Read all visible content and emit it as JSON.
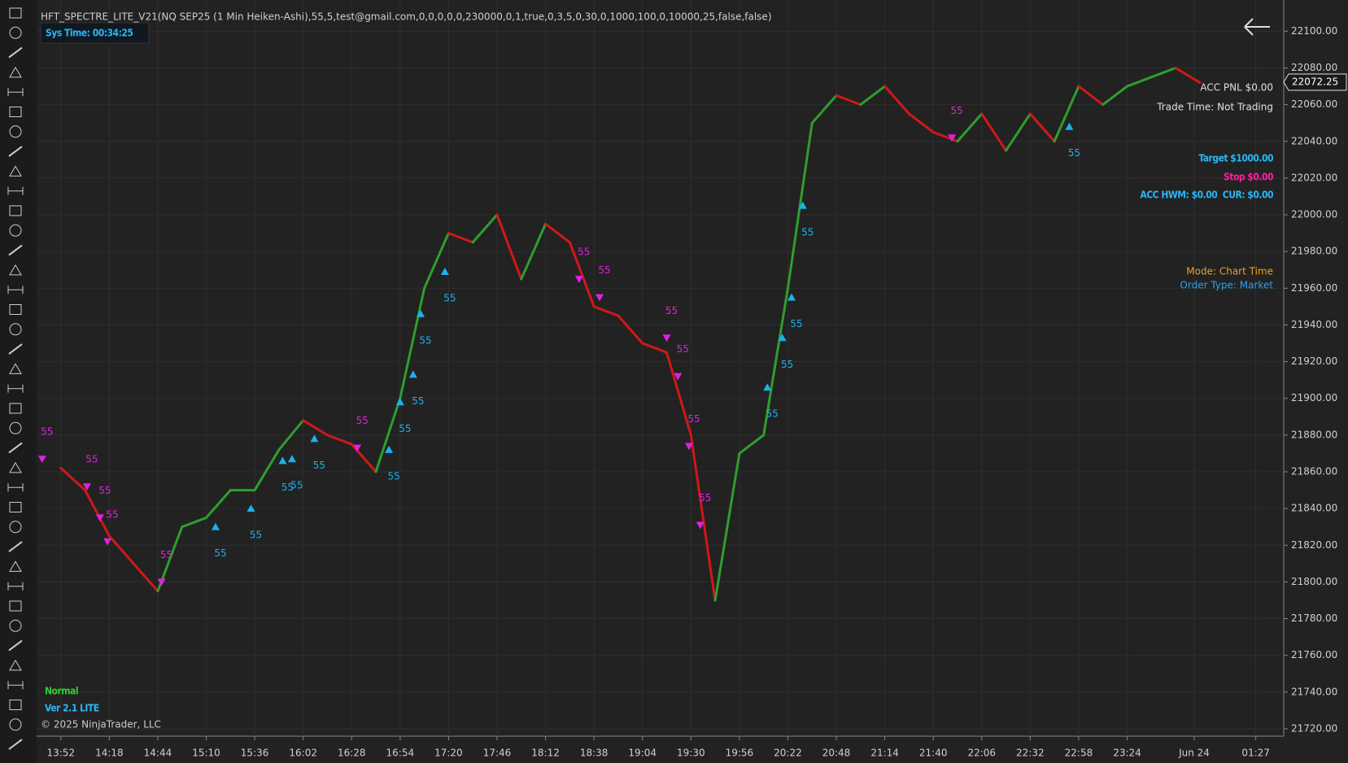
{
  "chart_data": {
    "type": "candlestick",
    "title": "HFT_SPECTRE_LITE_V21(NQ SEP25 (1 Min Heiken-Ashi),55,5,test@gmail.com,0,0,0,0,0,230000,0,1,true,0,3,5,0,30,0,1000,100,0,10000,25,false,false)",
    "sys_time": "Sys Time: 00:34:25",
    "acc_pnl": "ACC PNL $0.00",
    "trade_time": "Trade Time: Not Trading",
    "target": "Target $1000.00",
    "stop": "Stop $0.00",
    "acc_hwm": "ACC HWM: $0.00  CUR: $0.00",
    "mode": "Mode: Chart Time",
    "order_type": "Order Type: Market",
    "status": "Normal",
    "version": "Ver 2.1 LITE",
    "copyright": "© 2025 NinjaTrader, LLC",
    "last_price": 22072.25,
    "up_color": "#2e9e2e",
    "down_color": "#d01818",
    "grid": true,
    "xlim": [
      -13,
      656
    ],
    "ylim": [
      21716,
      22117
    ],
    "xticks": [
      {
        "value": 0,
        "label": "13:52"
      },
      {
        "value": 26,
        "label": "14:18"
      },
      {
        "value": 52,
        "label": "14:44"
      },
      {
        "value": 78,
        "label": "15:10"
      },
      {
        "value": 104,
        "label": "15:36"
      },
      {
        "value": 130,
        "label": "16:02"
      },
      {
        "value": 156,
        "label": "16:28"
      },
      {
        "value": 182,
        "label": "16:54"
      },
      {
        "value": 208,
        "label": "17:20"
      },
      {
        "value": 234,
        "label": "17:46"
      },
      {
        "value": 260,
        "label": "18:12"
      },
      {
        "value": 286,
        "label": "18:38"
      },
      {
        "value": 312,
        "label": "19:04"
      },
      {
        "value": 338,
        "label": "19:30"
      },
      {
        "value": 364,
        "label": "19:56"
      },
      {
        "value": 390,
        "label": "20:22"
      },
      {
        "value": 416,
        "label": "20:48"
      },
      {
        "value": 442,
        "label": "21:14"
      },
      {
        "value": 468,
        "label": "21:40"
      },
      {
        "value": 494,
        "label": "22:06"
      },
      {
        "value": 520,
        "label": "22:32"
      },
      {
        "value": 546,
        "label": "22:58"
      },
      {
        "value": 572,
        "label": "23:24"
      },
      {
        "value": 608,
        "label": "Jun 24"
      },
      {
        "value": 641,
        "label": "01:27"
      }
    ],
    "yticks": [
      {
        "value": 21720,
        "label": "21720.00"
      },
      {
        "value": 21740,
        "label": "21740.00"
      },
      {
        "value": 21760,
        "label": "21760.00"
      },
      {
        "value": 21780,
        "label": "21780.00"
      },
      {
        "value": 21800,
        "label": "21800.00"
      },
      {
        "value": 21820,
        "label": "21820.00"
      },
      {
        "value": 21840,
        "label": "21840.00"
      },
      {
        "value": 21860,
        "label": "21860.00"
      },
      {
        "value": 21880,
        "label": "21880.00"
      },
      {
        "value": 21900,
        "label": "21900.00"
      },
      {
        "value": 21920,
        "label": "21920.00"
      },
      {
        "value": 21940,
        "label": "21940.00"
      },
      {
        "value": 21960,
        "label": "21960.00"
      },
      {
        "value": 21980,
        "label": "21980.00"
      },
      {
        "value": 22000,
        "label": "22000.00"
      },
      {
        "value": 22020,
        "label": "22020.00"
      },
      {
        "value": 22040,
        "label": "22040.00"
      },
      {
        "value": 22060,
        "label": "22060.00"
      },
      {
        "value": 22080,
        "label": "22080.00"
      },
      {
        "value": 22100,
        "label": "22100.00"
      }
    ],
    "price": {
      "x": [
        0,
        13,
        26,
        39,
        52,
        65,
        78,
        91,
        104,
        117,
        130,
        143,
        156,
        169,
        182,
        195,
        208,
        221,
        234,
        247,
        260,
        273,
        286,
        299,
        312,
        325,
        338,
        351,
        364,
        377,
        390,
        403,
        416,
        429,
        442,
        455,
        468,
        481,
        494,
        507,
        520,
        533,
        546,
        559,
        572,
        585,
        598,
        611
      ],
      "values": [
        21862,
        21850,
        21825,
        21810,
        21795,
        21830,
        21835,
        21850,
        21850,
        21872,
        21888,
        21880,
        21875,
        21860,
        21900,
        21960,
        21990,
        21985,
        22000,
        21965,
        21995,
        21985,
        21950,
        21945,
        21930,
        21925,
        21880,
        21790,
        21870,
        21880,
        21960,
        22050,
        22065,
        22060,
        22070,
        22055,
        22045,
        22040,
        22055,
        22035,
        22055,
        22040,
        22070,
        22060,
        22070,
        22075,
        22080,
        22072
      ]
    },
    "buy_signals": {
      "color": "#1ab2f0",
      "x": [
        83,
        102,
        119,
        124,
        136,
        176,
        182,
        189,
        193,
        206,
        379,
        387,
        392,
        398,
        541
      ],
      "values": [
        21830,
        21840,
        21866,
        21867,
        21878,
        21872,
        21898,
        21913,
        21946,
        21969,
        21906,
        21933,
        21955,
        22005,
        22048
      ],
      "value_labels": [
        "55",
        "55",
        "55",
        "55",
        "55",
        "55",
        "55",
        "55",
        "55",
        "55",
        "55",
        "55",
        "55",
        "55",
        "55"
      ]
    },
    "sell_signals": {
      "color": "#e020e0",
      "x": [
        -10,
        14,
        21,
        25,
        54,
        159,
        278,
        289,
        325,
        331,
        337,
        343,
        478
      ],
      "values": [
        21867,
        21852,
        21835,
        21822,
        21800,
        21873,
        21965,
        21955,
        21933,
        21912,
        21874,
        21831,
        22042
      ],
      "value_labels": [
        "55",
        "55",
        "55",
        "55",
        "55",
        "55",
        "55",
        "55",
        "55",
        "55",
        "55",
        "55",
        "55"
      ]
    }
  }
}
